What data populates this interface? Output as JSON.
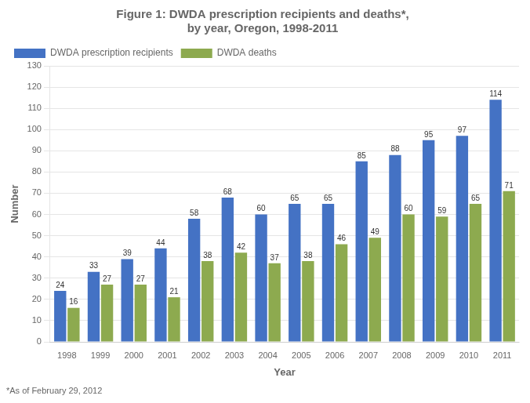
{
  "chart_data": {
    "type": "bar",
    "title": [
      "Figure 1: DWDA prescription recipients and deaths*,",
      "by year, Oregon, 1998-2011"
    ],
    "annotations": [
      "*As of February 29, 2012"
    ],
    "x_label": "Year",
    "y_label": "Number",
    "categories": [
      "1998",
      "1999",
      "2000",
      "2001",
      "2002",
      "2003",
      "2004",
      "2005",
      "2006",
      "2007",
      "2008",
      "2009",
      "2010",
      "2011"
    ],
    "series": [
      {
        "name": "DWDA prescription recipients",
        "color": "#4472C4",
        "values": [
          24,
          33,
          39,
          44,
          58,
          68,
          60,
          65,
          65,
          85,
          88,
          95,
          97,
          114
        ]
      },
      {
        "name": "DWDA deaths",
        "color": "#8DAA4F",
        "values": [
          16,
          27,
          27,
          21,
          38,
          42,
          37,
          38,
          46,
          49,
          60,
          59,
          65,
          71
        ]
      }
    ],
    "ylim": [
      0,
      130
    ],
    "yticks": [
      0,
      10,
      20,
      30,
      40,
      50,
      60,
      70,
      80,
      90,
      100,
      110,
      120,
      130
    ],
    "grid": true,
    "legend": "upper left",
    "data_labels": true
  }
}
